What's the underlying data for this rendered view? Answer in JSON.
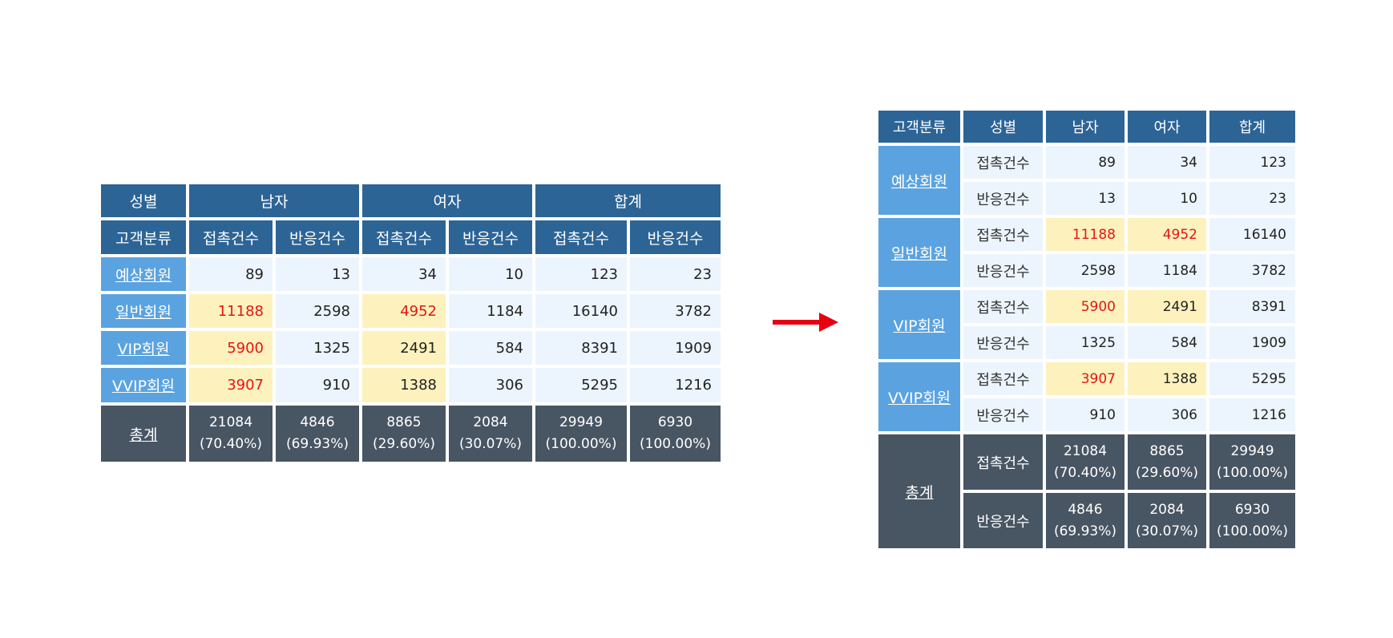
{
  "left": {
    "header": {
      "gender": "성별",
      "male": "남자",
      "female": "여자",
      "total": "합계",
      "customer_class": "고객분류",
      "contact": "접촉건수",
      "response": "반응건수"
    },
    "rows": [
      {
        "label": "예상회원",
        "values": [
          "89",
          "13",
          "34",
          "10",
          "123",
          "23"
        ]
      },
      {
        "label": "일반회원",
        "values": [
          "11188",
          "2598",
          "4952",
          "1184",
          "16140",
          "3782"
        ]
      },
      {
        "label": "VIP회원",
        "values": [
          "5900",
          "1325",
          "2491",
          "584",
          "8391",
          "1909"
        ]
      },
      {
        "label": "VVIP회원",
        "values": [
          "3907",
          "910",
          "1388",
          "306",
          "5295",
          "1216"
        ]
      }
    ],
    "total": {
      "label": "총계",
      "cells": [
        {
          "value": "21084",
          "pct": "(70.40%)"
        },
        {
          "value": "4846",
          "pct": "(69.93%)"
        },
        {
          "value": "8865",
          "pct": "(29.60%)"
        },
        {
          "value": "2084",
          "pct": "(30.07%)"
        },
        {
          "value": "29949",
          "pct": "(100.00%)"
        },
        {
          "value": "6930",
          "pct": "(100.00%)"
        }
      ]
    }
  },
  "right": {
    "header": {
      "customer_class": "고객분류",
      "gender": "성별",
      "male": "남자",
      "female": "여자",
      "total": "합계"
    },
    "groups": [
      {
        "label": "예상회원",
        "contact": {
          "label": "접촉건수",
          "values": [
            "89",
            "34",
            "123"
          ]
        },
        "response": {
          "label": "반응건수",
          "values": [
            "13",
            "10",
            "23"
          ]
        }
      },
      {
        "label": "일반회원",
        "contact": {
          "label": "접촉건수",
          "values": [
            "11188",
            "4952",
            "16140"
          ]
        },
        "response": {
          "label": "반응건수",
          "values": [
            "2598",
            "1184",
            "3782"
          ]
        }
      },
      {
        "label": "VIP회원",
        "contact": {
          "label": "접촉건수",
          "values": [
            "5900",
            "2491",
            "8391"
          ]
        },
        "response": {
          "label": "반응건수",
          "values": [
            "1325",
            "584",
            "1909"
          ]
        }
      },
      {
        "label": "VVIP회원",
        "contact": {
          "label": "접촉건수",
          "values": [
            "3907",
            "1388",
            "5295"
          ]
        },
        "response": {
          "label": "반응건수",
          "values": [
            "910",
            "306",
            "1216"
          ]
        }
      }
    ],
    "total": {
      "label": "총계",
      "contact": {
        "label": "접촉건수",
        "cells": [
          {
            "value": "21084",
            "pct": "(70.40%)"
          },
          {
            "value": "8865",
            "pct": "(29.60%)"
          },
          {
            "value": "29949",
            "pct": "(100.00%)"
          }
        ]
      },
      "response": {
        "label": "반응건수",
        "cells": [
          {
            "value": "4846",
            "pct": "(69.93%)"
          },
          {
            "value": "2084",
            "pct": "(30.07%)"
          },
          {
            "value": "6930",
            "pct": "(100.00%)"
          }
        ]
      }
    }
  },
  "colors": {
    "header_blue": "#2d6496",
    "category_blue": "#5ba3e0",
    "total_slate": "#485563",
    "cell_bg": "#ecf5fd",
    "highlight_yellow": "#fdf2bd",
    "highlight_red_text": "#e81414",
    "arrow_red": "#e60012"
  },
  "arrow": {
    "icon": "right-arrow-icon"
  }
}
